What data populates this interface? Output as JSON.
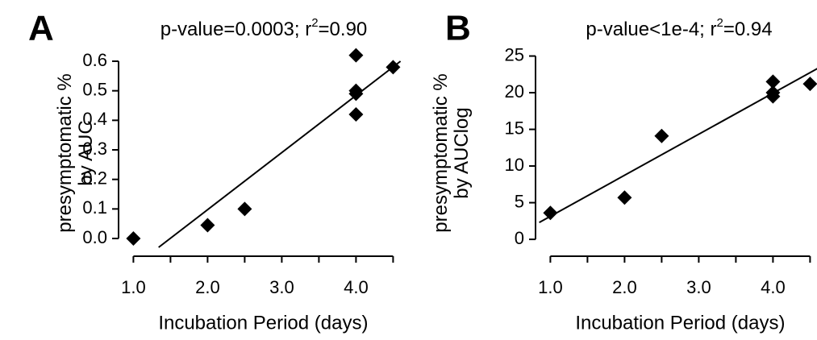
{
  "chart_data": [
    {
      "type": "scatter",
      "panel": "A",
      "title": [
        "p-value=0.0003; r",
        "2",
        "=0.90"
      ],
      "xlabel": "Incubation Period (days)",
      "ylabel": [
        "presymptomatic %",
        "by AUC"
      ],
      "x": [
        1,
        2,
        2.5,
        4,
        4,
        4,
        4,
        4.5
      ],
      "y": [
        0,
        0.045,
        0.1,
        0.62,
        0.5,
        0.49,
        0.42,
        0.58
      ],
      "color": "#000000",
      "fit_line": {
        "x": [
          1.34,
          4.6
        ],
        "y": [
          -0.03,
          0.6
        ]
      },
      "xlim": [
        0.8,
        4.6
      ],
      "ylim": [
        -0.06,
        0.63
      ],
      "xticks": [
        {
          "value": 1,
          "label": "1.0"
        },
        {
          "value": 2,
          "label": "2.0"
        },
        {
          "value": 3,
          "label": "3.0"
        },
        {
          "value": 4,
          "label": "4.0"
        }
      ],
      "xminor_ticks": [
        1.5,
        2.5,
        3.5,
        4.5
      ],
      "yticks": [
        {
          "value": 0,
          "label": "0.0"
        },
        0.1,
        0.2,
        0.3,
        0.4,
        0.5,
        0.6
      ]
    },
    {
      "type": "scatter",
      "panel": "B",
      "title": [
        "p-value<1e-4; r",
        "2",
        "=0.94"
      ],
      "xlabel": "Incubation Period (days)",
      "ylabel": [
        "presymptomatic %",
        "by AUClog"
      ],
      "x": [
        1,
        2,
        2.5,
        4,
        4,
        4,
        4.5
      ],
      "y": [
        3.6,
        5.7,
        14.1,
        21.5,
        20,
        19.5,
        21.2
      ],
      "color": "#000000",
      "fit_line": {
        "x": [
          0.85,
          4.6
        ],
        "y": [
          2.3,
          23.3
        ]
      },
      "xlim": [
        0.8,
        4.6
      ],
      "ylim": [
        -2.3,
        25.5
      ],
      "xticks": [
        {
          "value": 1,
          "label": "1.0"
        },
        {
          "value": 2,
          "label": "2.0"
        },
        {
          "value": 3,
          "label": "3.0"
        },
        {
          "value": 4,
          "label": "4.0"
        }
      ],
      "xminor_ticks": [
        1.5,
        2.5,
        3.5,
        4.5
      ],
      "yticks": [
        0,
        5,
        10,
        15,
        20,
        25
      ]
    }
  ]
}
